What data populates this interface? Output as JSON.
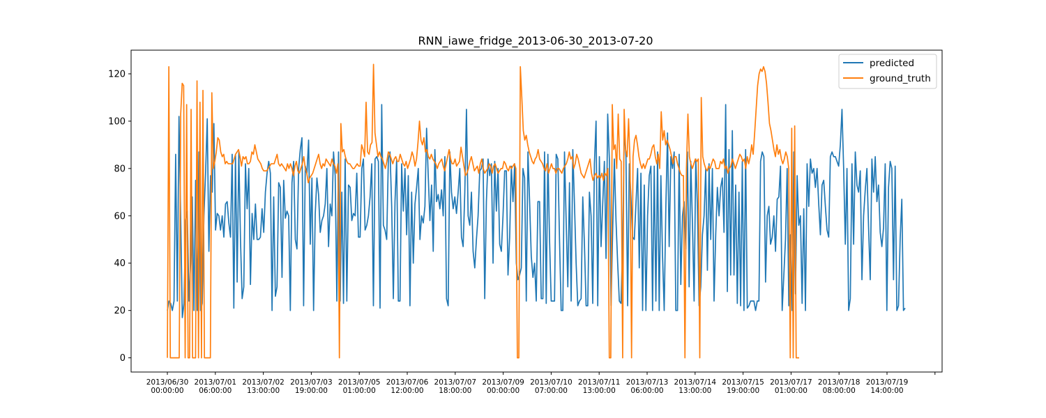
{
  "chart_data": {
    "type": "line",
    "title": "RNN_iawe_fridge_2013-06-30_2013-07-20",
    "xlabel": "",
    "ylabel": "",
    "ylim": [
      -6,
      130
    ],
    "yticks": [
      0,
      20,
      40,
      60,
      80,
      100,
      120
    ],
    "xticks": [
      {
        "line1": "2013/06/30",
        "line2": "00:00:00"
      },
      {
        "line1": "2013/07/01",
        "line2": "06:00:00"
      },
      {
        "line1": "2013/07/02",
        "line2": "13:00:00"
      },
      {
        "line1": "2013/07/03",
        "line2": "19:00:00"
      },
      {
        "line1": "2013/07/05",
        "line2": "01:00:00"
      },
      {
        "line1": "2013/07/06",
        "line2": "12:00:00"
      },
      {
        "line1": "2013/07/07",
        "line2": "18:00:00"
      },
      {
        "line1": "2013/07/09",
        "line2": "00:00:00"
      },
      {
        "line1": "2013/07/10",
        "line2": "07:00:00"
      },
      {
        "line1": "2013/07/11",
        "line2": "13:00:00"
      },
      {
        "line1": "2013/07/13",
        "line2": "06:00:00"
      },
      {
        "line1": "2013/07/14",
        "line2": "13:00:00"
      },
      {
        "line1": "2013/07/15",
        "line2": "19:00:00"
      },
      {
        "line1": "2013/07/17",
        "line2": "01:00:00"
      },
      {
        "line1": "2013/07/18",
        "line2": "08:00:00"
      },
      {
        "line1": "2013/07/19",
        "line2": "14:00:00"
      }
    ],
    "grid": false,
    "legend_position": "top-right",
    "series": [
      {
        "name": "predicted",
        "color": "#1f77b4",
        "values": [
          20,
          24,
          23,
          20,
          24,
          86,
          24,
          102,
          60,
          17,
          23,
          58,
          62,
          24,
          40,
          68,
          20,
          75,
          20,
          87,
          20,
          23,
          60,
          78,
          101,
          45,
          77,
          70,
          99,
          54,
          61,
          60,
          54,
          60,
          51,
          65,
          66,
          57,
          51,
          86,
          21,
          86,
          32,
          87,
          50,
          25,
          30,
          82,
          63,
          80,
          31,
          61,
          50,
          65,
          50,
          50,
          51,
          63,
          53,
          70,
          78,
          83,
          78,
          20,
          68,
          26,
          30,
          74,
          72,
          34,
          75,
          59,
          62,
          60,
          20,
          74,
          83,
          50,
          46,
          80,
          88,
          93,
          22,
          81,
          78,
          92,
          48,
          76,
          20,
          61,
          76,
          69,
          53,
          58,
          60,
          65,
          80,
          47,
          65,
          60,
          87,
          77,
          24,
          87,
          24,
          70,
          23,
          84,
          24,
          73,
          72,
          58,
          61,
          60,
          78,
          51,
          51,
          80,
          84,
          54,
          56,
          60,
          68,
          82,
          22,
          84,
          85,
          83,
          21,
          107,
          56,
          54,
          50,
          84,
          87,
          64,
          25,
          66,
          84,
          24,
          24,
          82,
          62,
          80,
          52,
          77,
          22,
          70,
          40,
          65,
          72,
          80,
          50,
          60,
          57,
          64,
          97,
          77,
          58,
          73,
          45,
          88,
          66,
          69,
          63,
          71,
          60,
          85,
          25,
          22,
          87,
          70,
          63,
          68,
          61,
          70,
          80,
          51,
          47,
          70,
          105,
          60,
          56,
          70,
          45,
          38,
          50,
          60,
          79,
          80,
          84,
          25,
          66,
          84,
          77,
          82,
          40,
          83,
          62,
          80,
          48,
          45,
          60,
          79,
          79,
          35,
          51,
          81,
          66,
          82,
          40,
          33,
          35,
          38,
          80,
          76,
          24,
          87,
          66,
          43,
          34,
          40,
          24,
          66,
          66,
          25,
          25,
          87,
          23,
          86,
          50,
          24,
          24,
          24,
          86,
          84,
          50,
          20,
          20,
          87,
          58,
          30,
          74,
          24,
          88,
          65,
          40,
          22,
          24,
          25,
          68,
          48,
          22,
          22,
          70,
          60,
          23,
          82,
          100,
          22,
          85,
          47,
          65,
          83,
          42,
          103,
          84,
          22,
          54,
          84,
          58,
          40,
          24,
          23,
          48,
          97,
          85,
          22,
          82,
          68,
          51,
          50,
          65,
          80,
          38,
          78,
          20,
          73,
          20,
          60,
          77,
          81,
          20,
          81,
          24,
          87,
          20,
          77,
          43,
          20,
          64,
          95,
          47,
          85,
          80,
          87,
          20,
          20,
          86,
          31,
          60,
          66,
          46,
          87,
          30,
          83,
          57,
          24,
          84,
          64,
          22,
          30,
          52,
          60,
          80,
          37,
          82,
          50,
          80,
          24,
          52,
          72,
          60,
          72,
          76,
          53,
          107,
          28,
          88,
          35,
          96,
          35,
          73,
          23,
          70,
          22,
          83,
          20,
          88,
          21,
          22,
          24,
          24,
          24,
          20,
          24,
          24,
          83,
          87,
          85,
          32,
          60,
          64,
          48,
          51,
          60,
          45,
          67,
          68,
          81,
          20,
          35,
          50,
          80,
          22,
          52,
          20,
          87,
          27,
          77,
          56,
          60,
          23,
          63,
          20,
          82,
          64,
          84,
          78,
          80,
          72,
          80,
          65,
          52,
          73,
          75,
          64,
          54,
          51,
          85,
          87,
          85,
          85,
          83,
          81,
          90,
          105,
          80,
          48,
          80,
          20,
          25,
          82,
          48,
          87,
          73,
          70,
          79,
          33,
          60,
          71,
          80,
          55,
          33,
          84,
          70,
          85,
          66,
          73,
          53,
          47,
          55,
          82,
          20,
          72,
          83,
          80,
          33,
          81,
          20,
          22,
          50,
          67,
          20,
          21
        ]
      },
      {
        "name": "ground_truth",
        "color": "#ff7f0e",
        "values": [
          0,
          123,
          0,
          0,
          0,
          0,
          0,
          0,
          0,
          103,
          116,
          115,
          0,
          107,
          0,
          0,
          105,
          0,
          0,
          0,
          117,
          0,
          108,
          0,
          113,
          0,
          0,
          0,
          0,
          0,
          112,
          80,
          83,
          87,
          93,
          92,
          87,
          85,
          86,
          82,
          83,
          82,
          82,
          82,
          82,
          84,
          86,
          87,
          88,
          85,
          81,
          85,
          84,
          85,
          82,
          82,
          83,
          87,
          86,
          90,
          87,
          84,
          83,
          82,
          80,
          79,
          79,
          79,
          80,
          81,
          82,
          82,
          82,
          84,
          86,
          82,
          81,
          82,
          81,
          80,
          79,
          82,
          80,
          82,
          80,
          77,
          81,
          83,
          79,
          78,
          80,
          82,
          85,
          80,
          78,
          74,
          76,
          77,
          78,
          80,
          82,
          84,
          86,
          82,
          80,
          82,
          81,
          84,
          83,
          82,
          81,
          84,
          82,
          81,
          78,
          82,
          0,
          99,
          87,
          88,
          85,
          83,
          82,
          82,
          81,
          80,
          80,
          81,
          82,
          81,
          81,
          90,
          88,
          85,
          108,
          87,
          86,
          90,
          91,
          124,
          95,
          90,
          85,
          87,
          85,
          84,
          82,
          80,
          83,
          87,
          86,
          84,
          82,
          84,
          85,
          83,
          83,
          86,
          84,
          82,
          81,
          83,
          80,
          82,
          84,
          87,
          85,
          81,
          84,
          91,
          100,
          92,
          90,
          93,
          87,
          88,
          85,
          84,
          86,
          84,
          83,
          82,
          80,
          82,
          83,
          84,
          81,
          79,
          82,
          85,
          88,
          84,
          82,
          82,
          84,
          81,
          82,
          83,
          89,
          85,
          81,
          77,
          78,
          80,
          83,
          85,
          82,
          79,
          80,
          81,
          78,
          82,
          84,
          80,
          78,
          79,
          80,
          82,
          81,
          78,
          81,
          82,
          80,
          78,
          79,
          80,
          80,
          83,
          82,
          80,
          79,
          81,
          80,
          81,
          82,
          80,
          0,
          0,
          123,
          110,
          96,
          92,
          94,
          90,
          87,
          85,
          83,
          82,
          84,
          85,
          88,
          84,
          83,
          82,
          80,
          79,
          82,
          78,
          80,
          82,
          80,
          80,
          78,
          80,
          80,
          79,
          78,
          80,
          81,
          82,
          84,
          87,
          84,
          85,
          80,
          82,
          86,
          84,
          81,
          78,
          77,
          76,
          78,
          80,
          82,
          84,
          78,
          75,
          77,
          78,
          76,
          77,
          76,
          78,
          75,
          78,
          77,
          80,
          0,
          0,
          107,
          88,
          90,
          80,
          103,
          84,
          83,
          0,
          105,
          88,
          85,
          101,
          82,
          0,
          85,
          92,
          94,
          90,
          85,
          82,
          80,
          82,
          80,
          82,
          84,
          84,
          86,
          89,
          90,
          85,
          82,
          86,
          80,
          104,
          92,
          96,
          90,
          92,
          90,
          88,
          85,
          82,
          85,
          85,
          82,
          80,
          78,
          77,
          77,
          0,
          80,
          103,
          85,
          82,
          80,
          82,
          84,
          83,
          84,
          0,
          110,
          85,
          82,
          80,
          79,
          81,
          80,
          82,
          84,
          83,
          80,
          80,
          80,
          83,
          82,
          84,
          80,
          81,
          78,
          80,
          81,
          84,
          82,
          80,
          82,
          84,
          86,
          85,
          83,
          84,
          80,
          85,
          82,
          85,
          90,
          86,
          95,
          105,
          115,
          120,
          122,
          121,
          123,
          121,
          116,
          108,
          99,
          96,
          92,
          88,
          85,
          90,
          86,
          88,
          84,
          82,
          84,
          87,
          85,
          80,
          0,
          97,
          0,
          98,
          0,
          0,
          0
        ]
      }
    ]
  }
}
